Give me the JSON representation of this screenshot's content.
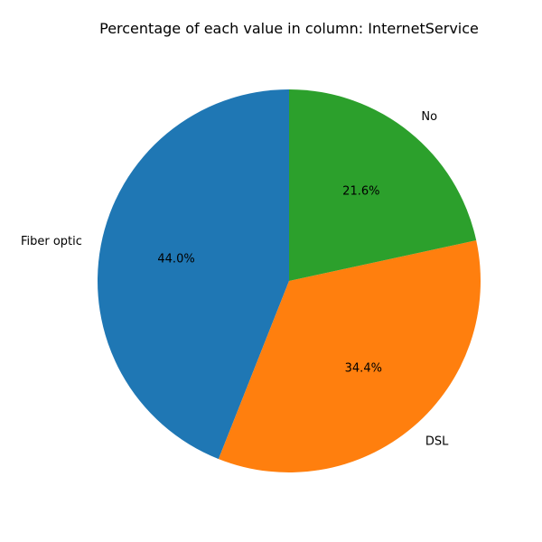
{
  "chart_data": {
    "type": "pie",
    "title": "Percentage of each value in column: InternetService",
    "categories": [
      "Fiber optic",
      "DSL",
      "No"
    ],
    "values": [
      44.0,
      34.4,
      21.6
    ],
    "value_labels": [
      "44.0%",
      "34.4%",
      "21.6%"
    ],
    "colors": [
      "#1f77b4",
      "#ff7f0e",
      "#2ca02c"
    ],
    "start_angle_deg": 90,
    "direction": "counterclockwise",
    "legend": "none"
  }
}
